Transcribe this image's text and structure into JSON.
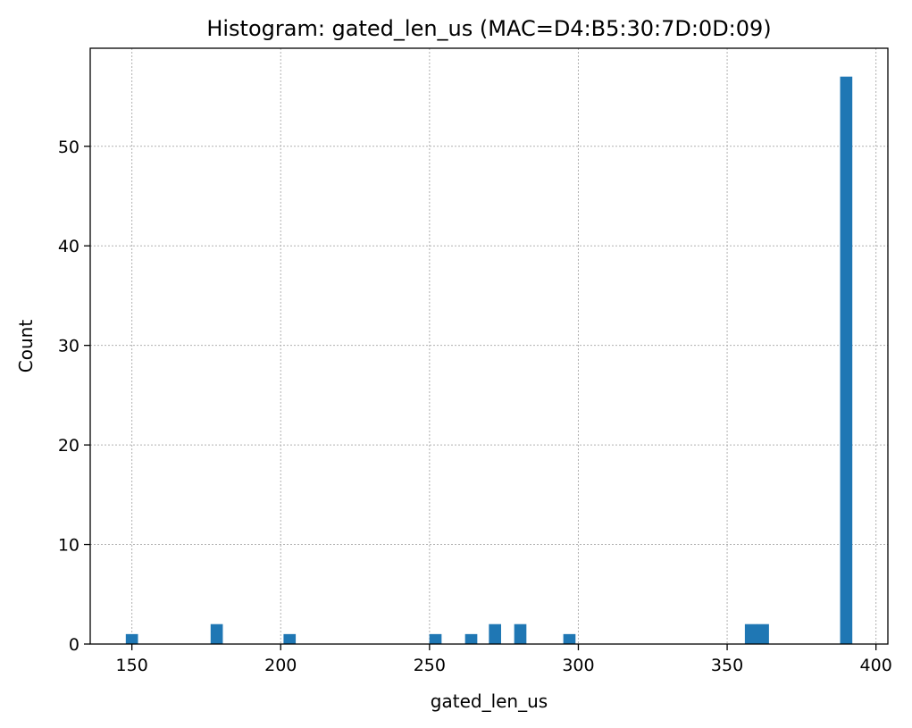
{
  "chart_data": {
    "type": "bar",
    "title": "Histogram: gated_len_us (MAC=D4:B5:30:7D:0D:09)",
    "xlabel": "gated_len_us",
    "ylabel": "Count",
    "xlim": [
      136,
      404
    ],
    "ylim": [
      0,
      59.85
    ],
    "xticks": [
      150,
      200,
      250,
      300,
      350,
      400
    ],
    "yticks": [
      0,
      10,
      20,
      30,
      40,
      50
    ],
    "grid": true,
    "bin_width": 4.1,
    "bars": [
      {
        "x": 150,
        "count": 1
      },
      {
        "x": 178.5,
        "count": 2
      },
      {
        "x": 203,
        "count": 1
      },
      {
        "x": 252,
        "count": 1
      },
      {
        "x": 264,
        "count": 1
      },
      {
        "x": 272,
        "count": 2
      },
      {
        "x": 280.5,
        "count": 2
      },
      {
        "x": 297,
        "count": 1
      },
      {
        "x": 358,
        "count": 2
      },
      {
        "x": 362,
        "count": 2
      },
      {
        "x": 390,
        "count": 57
      }
    ],
    "bar_color": "#1f77b4"
  }
}
